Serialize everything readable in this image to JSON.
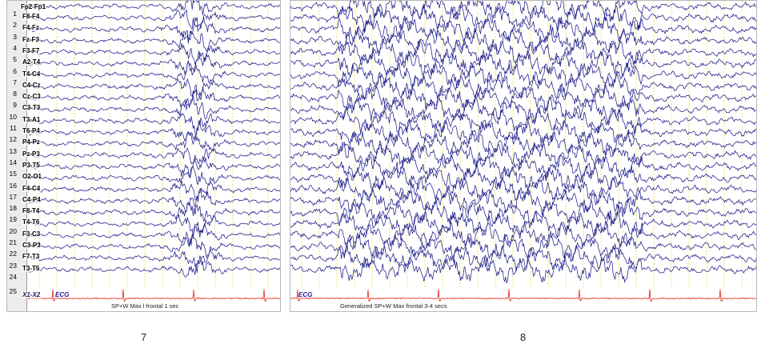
{
  "left_panel": {
    "top_label": "Fp2-Fp1",
    "channels": [
      "F8-F4",
      "F4-Fz",
      "Fz-F3",
      "F3-F7",
      "A2-T4",
      "T4-C4",
      "C4-Cz",
      "Cz-C3",
      "C3-T3",
      "T3-A1",
      "T6-P4",
      "P4-Pz",
      "Pz-P3",
      "P3-T5",
      "O2-O1",
      "F4-C4",
      "C4-P4",
      "F8-T4",
      "T4-T6",
      "F3-C3",
      "C3-P3",
      "F7-T3",
      "T3-T5"
    ],
    "numbers": [
      "1",
      "2",
      "3",
      "4",
      "5",
      "6",
      "7",
      "8",
      "9",
      "10",
      "11",
      "12",
      "13",
      "14",
      "15",
      "16",
      "17",
      "18",
      "19",
      "20",
      "21",
      "22",
      "23",
      "24",
      "25"
    ],
    "extra_label": "X1-X2",
    "ecg_label": "ECG",
    "annotation": "SP+W Max l frontal  1 sec"
  },
  "right_panel": {
    "ecg_label": "ECG",
    "annotation": "Generalized SP+W Max frontal  3-4 secs"
  },
  "captions": {
    "left": "7",
    "right": "8"
  },
  "colors": {
    "trace": "#1f1f8c",
    "ecg": "#e8392a",
    "gridline": "#f0e060",
    "background": "#ffffff"
  }
}
